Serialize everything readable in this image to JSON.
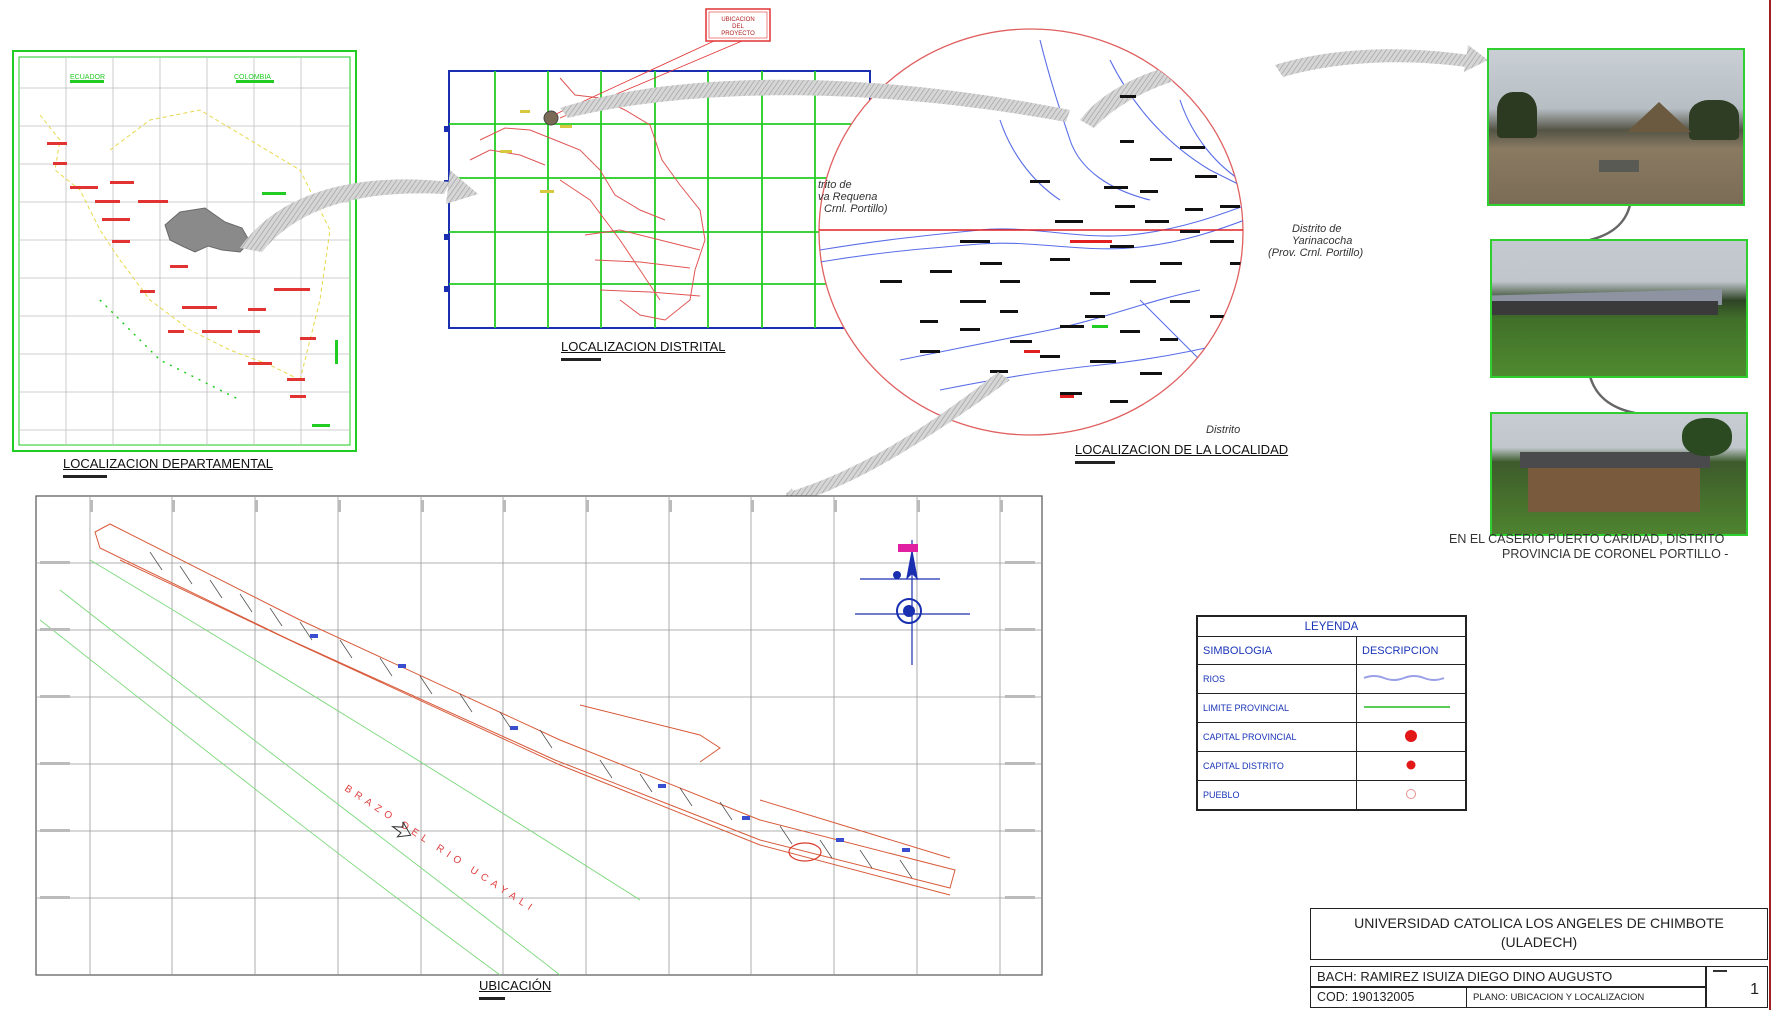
{
  "callout": {
    "line1": "UBICACION",
    "line2": "DEL",
    "line3": "PROYECTO"
  },
  "captions": {
    "departamental": "LOCALIZACION DEPARTAMENTAL",
    "distrital": "LOCALIZACION DISTRITAL",
    "localidad": "LOCALIZACION DE LA LOCALIDAD",
    "ubicacion": "UBICACIÓN"
  },
  "dept_map": {
    "country_left": "ECUADOR",
    "country_right": "COLOMBIA"
  },
  "localidad_map": {
    "district_left_1": "trito de",
    "district_left_2": "va Requena",
    "district_left_3": "Crnl. Portillo)",
    "district_right_1": "Distrito de",
    "district_right_2": "Yarinacocha",
    "district_right_3": "(Prov. Crnl. Portillo)",
    "district_bottom": "Distrito"
  },
  "site_plan": {
    "river_label": "BRAZO DEL RIO UCAYALI"
  },
  "photo_caption": {
    "line1": "EN EL CASERIO PUERTO CARIDAD, DISTRITO",
    "line2": "PROVINCIA DE CORONEL PORTILLO -"
  },
  "legend": {
    "title": "LEYENDA",
    "col1": "SIMBOLOGIA",
    "col2": "DESCRIPCION",
    "rows": [
      {
        "label": "RIOS"
      },
      {
        "label": "LIMITE     PROVINCIAL"
      },
      {
        "label": "CAPITAL    PROVINCIAL"
      },
      {
        "label": "CAPITAL    DISTRITO"
      },
      {
        "label": "PUEBLO"
      }
    ]
  },
  "title_block": {
    "university_line1": "UNIVERSIDAD CATOLICA LOS ANGELES DE CHIMBOTE",
    "university_line2": "(ULADECH)",
    "author": "BACH: RAMIREZ ISUIZA DIEGO DINO AUGUSTO",
    "code": "COD: 190132005",
    "plan": "PLANO: UBICACION Y LOCALIZACION",
    "sheet_number": "1"
  },
  "colors": {
    "grid_green": "#22cc22",
    "border_blue": "#1a2fb0",
    "boundary_red": "#e23333",
    "river_blue": "#4a5fe0",
    "arrow_gray": "#b4b4b4"
  }
}
